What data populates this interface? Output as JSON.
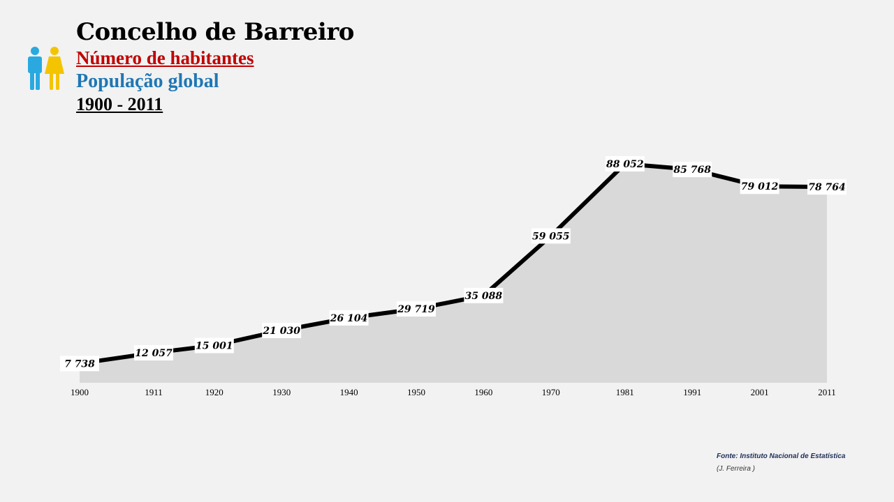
{
  "header": {
    "title": "Concelho de Barreiro",
    "subtitle": "Número de habitantes",
    "subtitle2": "População global",
    "period": "1900 - 2011"
  },
  "colors": {
    "subtitle": "#c00000",
    "subtitle2": "#1f77b4",
    "line": "#000000",
    "area": "#d9d9d9",
    "label_bg": "#ffffff",
    "icon_male": "#29a9e0",
    "icon_female": "#f5c400"
  },
  "icon": "people-male-female-icon",
  "chart_data": {
    "type": "area",
    "x": [
      "1900",
      "1911",
      "1920",
      "1930",
      "1940",
      "1950",
      "1960",
      "1970",
      "1981",
      "1991",
      "2001",
      "2011"
    ],
    "values": [
      7738,
      12057,
      15001,
      21030,
      26104,
      29719,
      35088,
      59055,
      88052,
      85768,
      79012,
      78764
    ],
    "data_labels": [
      "7 738",
      "12 057",
      "15 001",
      "21 030",
      "26 104",
      "29 719",
      "35 088",
      "59 055",
      "88 052",
      "85 768",
      "79 012",
      "78 764"
    ],
    "ylim": [
      0,
      88052
    ],
    "grid": false,
    "legend": "none"
  },
  "footer": {
    "source": "Fonte: Instituto Nacional de Estatística",
    "author": "(J. Ferreira )"
  }
}
